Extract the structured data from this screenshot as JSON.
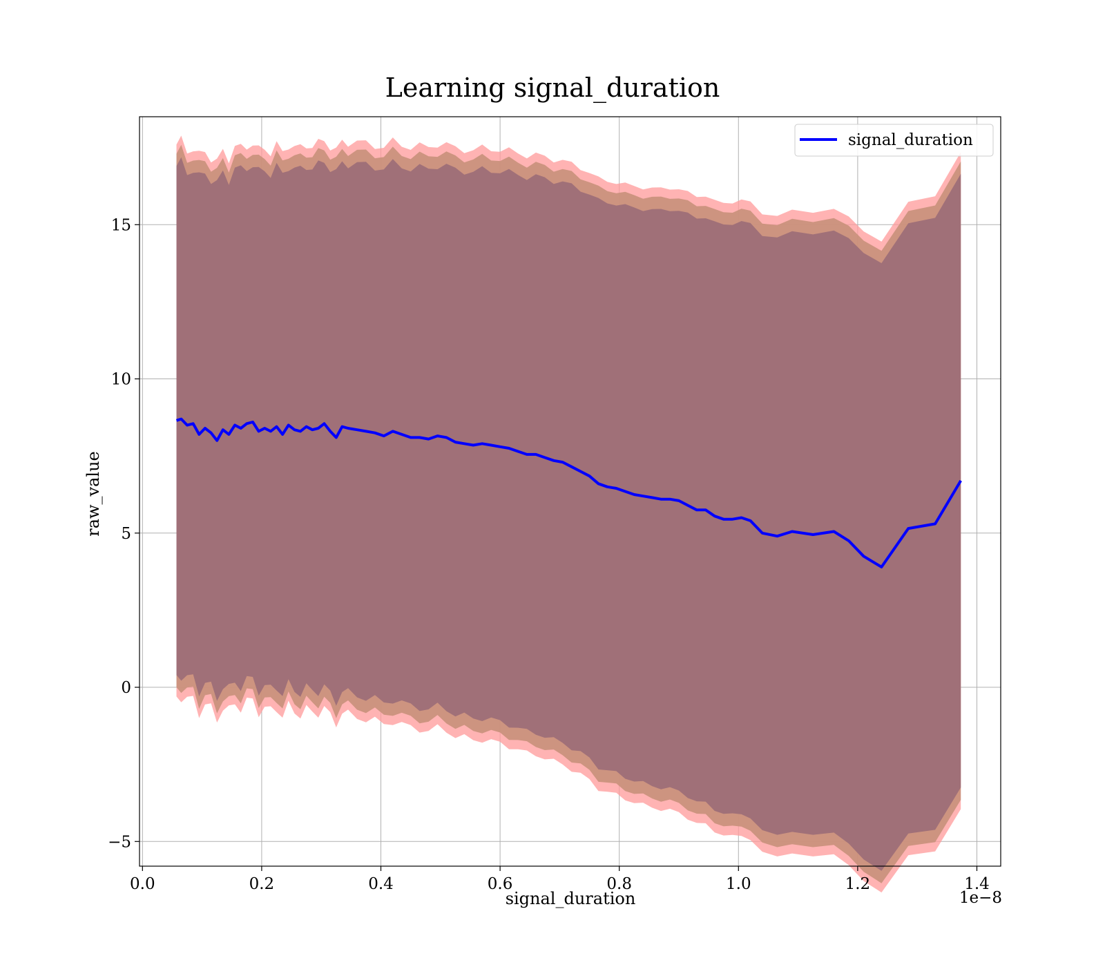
{
  "chart_data": {
    "type": "line",
    "title": "Learning signal_duration",
    "xlabel": "signal_duration",
    "ylabel": "raw_value",
    "x_offset_label": "1e−8",
    "xlim": [
      -0.005,
      1.44
    ],
    "ylim": [
      -5.8,
      18.5
    ],
    "x_ticks": [
      0.0,
      0.2,
      0.4,
      0.6,
      0.8,
      1.0,
      1.2,
      1.4
    ],
    "x_tick_labels": [
      "0.0",
      "0.2",
      "0.4",
      "0.6",
      "0.8",
      "1.0",
      "1.2",
      "1.4"
    ],
    "y_ticks": [
      -5,
      0,
      5,
      10,
      15
    ],
    "y_tick_labels": [
      "−5",
      "0",
      "5",
      "10",
      "15"
    ],
    "grid": true,
    "legend": {
      "position": "top-right",
      "entries": [
        "signal_duration"
      ]
    },
    "colors": {
      "line": "#0000ff",
      "band_outer": "#ff9999",
      "band_middle": "#c8907a",
      "band_inner": "#a07078"
    },
    "series": [
      {
        "name": "signal_duration",
        "x": [
          0.057,
          0.065,
          0.075,
          0.085,
          0.095,
          0.105,
          0.115,
          0.125,
          0.135,
          0.145,
          0.155,
          0.165,
          0.175,
          0.185,
          0.195,
          0.205,
          0.215,
          0.225,
          0.235,
          0.245,
          0.255,
          0.265,
          0.275,
          0.285,
          0.295,
          0.305,
          0.315,
          0.325,
          0.335,
          0.345,
          0.36,
          0.375,
          0.39,
          0.405,
          0.42,
          0.435,
          0.45,
          0.465,
          0.48,
          0.495,
          0.51,
          0.525,
          0.54,
          0.555,
          0.57,
          0.585,
          0.6,
          0.615,
          0.63,
          0.645,
          0.66,
          0.675,
          0.69,
          0.705,
          0.72,
          0.735,
          0.75,
          0.765,
          0.78,
          0.795,
          0.81,
          0.825,
          0.84,
          0.855,
          0.87,
          0.885,
          0.9,
          0.915,
          0.93,
          0.945,
          0.96,
          0.975,
          0.99,
          1.005,
          1.02,
          1.04,
          1.065,
          1.09,
          1.125,
          1.16,
          1.185,
          1.21,
          1.24,
          1.285,
          1.33,
          1.373
        ],
        "y": [
          8.65,
          8.7,
          8.5,
          8.55,
          8.2,
          8.4,
          8.25,
          8.0,
          8.35,
          8.2,
          8.5,
          8.4,
          8.55,
          8.6,
          8.3,
          8.4,
          8.3,
          8.45,
          8.2,
          8.5,
          8.35,
          8.3,
          8.45,
          8.35,
          8.4,
          8.55,
          8.3,
          8.1,
          8.45,
          8.4,
          8.35,
          8.3,
          8.25,
          8.15,
          8.3,
          8.2,
          8.1,
          8.1,
          8.05,
          8.15,
          8.1,
          7.95,
          7.9,
          7.85,
          7.9,
          7.85,
          7.8,
          7.75,
          7.65,
          7.55,
          7.55,
          7.45,
          7.35,
          7.3,
          7.15,
          7.0,
          6.85,
          6.6,
          6.5,
          6.45,
          6.35,
          6.25,
          6.2,
          6.15,
          6.1,
          6.1,
          6.05,
          5.9,
          5.75,
          5.75,
          5.55,
          5.45,
          5.45,
          5.5,
          5.4,
          5.0,
          4.9,
          5.05,
          4.95,
          5.05,
          4.75,
          4.25,
          3.9,
          5.15,
          5.3,
          6.7
        ]
      }
    ]
  }
}
